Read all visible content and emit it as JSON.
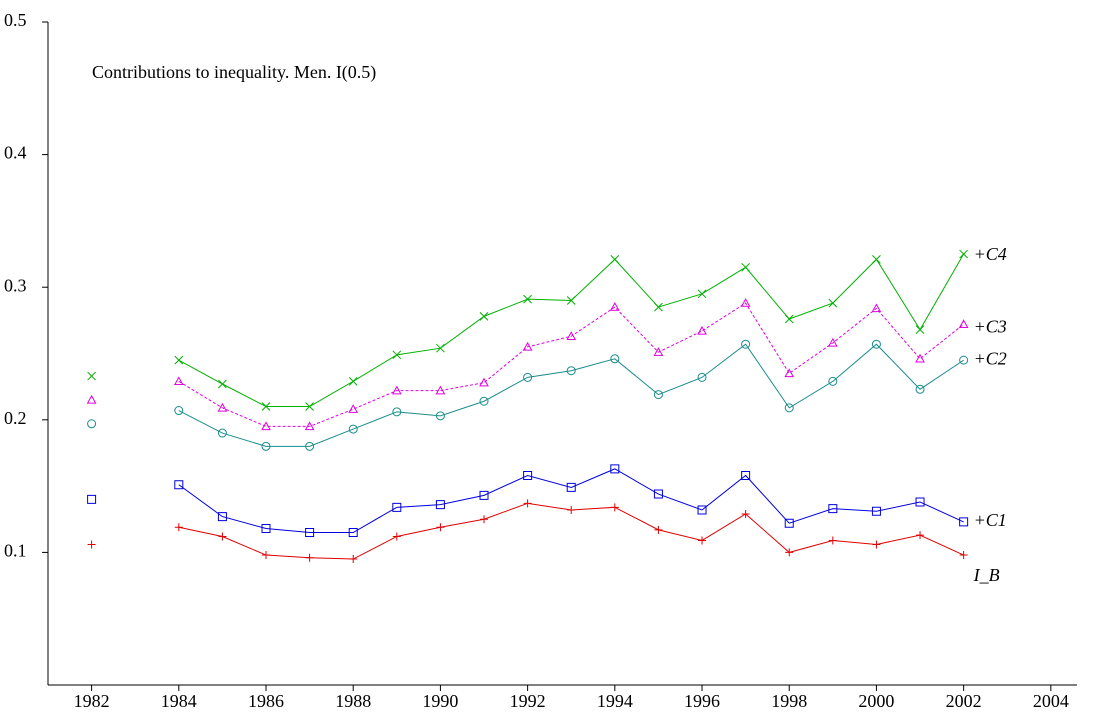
{
  "chart_data": {
    "type": "line",
    "title": "Contributions to inequality. Men. I(0.5)",
    "x": [
      1982,
      1983,
      1984,
      1985,
      1986,
      1987,
      1988,
      1989,
      1990,
      1991,
      1992,
      1993,
      1994,
      1995,
      1996,
      1997,
      1998,
      1999,
      2000,
      2001,
      2002
    ],
    "xlim": [
      1981,
      2004.6
    ],
    "xticks": [
      1982,
      1984,
      1986,
      1988,
      1990,
      1992,
      1994,
      1996,
      1998,
      2000,
      2002,
      2004
    ],
    "ylim": [
      0,
      0.5
    ],
    "yticks": [
      0.1,
      0.2,
      0.3,
      0.4,
      0.5
    ],
    "series": [
      {
        "name": "I_B",
        "color": "#e00000",
        "marker": "plus",
        "dash": false,
        "values": [
          0.106,
          null,
          0.119,
          0.112,
          0.098,
          0.096,
          0.095,
          0.112,
          0.119,
          0.125,
          0.137,
          0.132,
          0.134,
          0.117,
          0.109,
          0.129,
          0.1,
          0.109,
          0.106,
          0.113,
          0.098
        ]
      },
      {
        "name": "+C1",
        "color": "#0000e0",
        "marker": "square",
        "dash": false,
        "values": [
          0.14,
          null,
          0.151,
          0.127,
          0.118,
          0.115,
          0.115,
          0.134,
          0.136,
          0.143,
          0.158,
          0.149,
          0.163,
          0.144,
          0.132,
          0.158,
          0.122,
          0.133,
          0.131,
          0.138,
          0.123
        ]
      },
      {
        "name": "+C2",
        "color": "#1a8c8c",
        "marker": "circle",
        "dash": false,
        "values": [
          0.197,
          null,
          0.207,
          0.19,
          0.18,
          0.18,
          0.193,
          0.206,
          0.203,
          0.214,
          0.232,
          0.237,
          0.246,
          0.219,
          0.232,
          0.257,
          0.209,
          0.229,
          0.257,
          0.223,
          0.245
        ]
      },
      {
        "name": "+C3",
        "color": "#e000e0",
        "marker": "triangle",
        "dash": true,
        "values": [
          0.215,
          null,
          0.229,
          0.209,
          0.195,
          0.195,
          0.208,
          0.222,
          0.222,
          0.228,
          0.255,
          0.263,
          0.285,
          0.251,
          0.267,
          0.288,
          0.235,
          0.258,
          0.284,
          0.246,
          0.272
        ]
      },
      {
        "name": "+C4",
        "color": "#00b000",
        "marker": "x",
        "dash": false,
        "values": [
          0.233,
          null,
          0.245,
          0.227,
          0.21,
          0.21,
          0.229,
          0.249,
          0.254,
          0.278,
          0.291,
          0.29,
          0.321,
          0.285,
          0.295,
          0.315,
          0.276,
          0.288,
          0.321,
          0.268,
          0.325
        ]
      }
    ]
  }
}
